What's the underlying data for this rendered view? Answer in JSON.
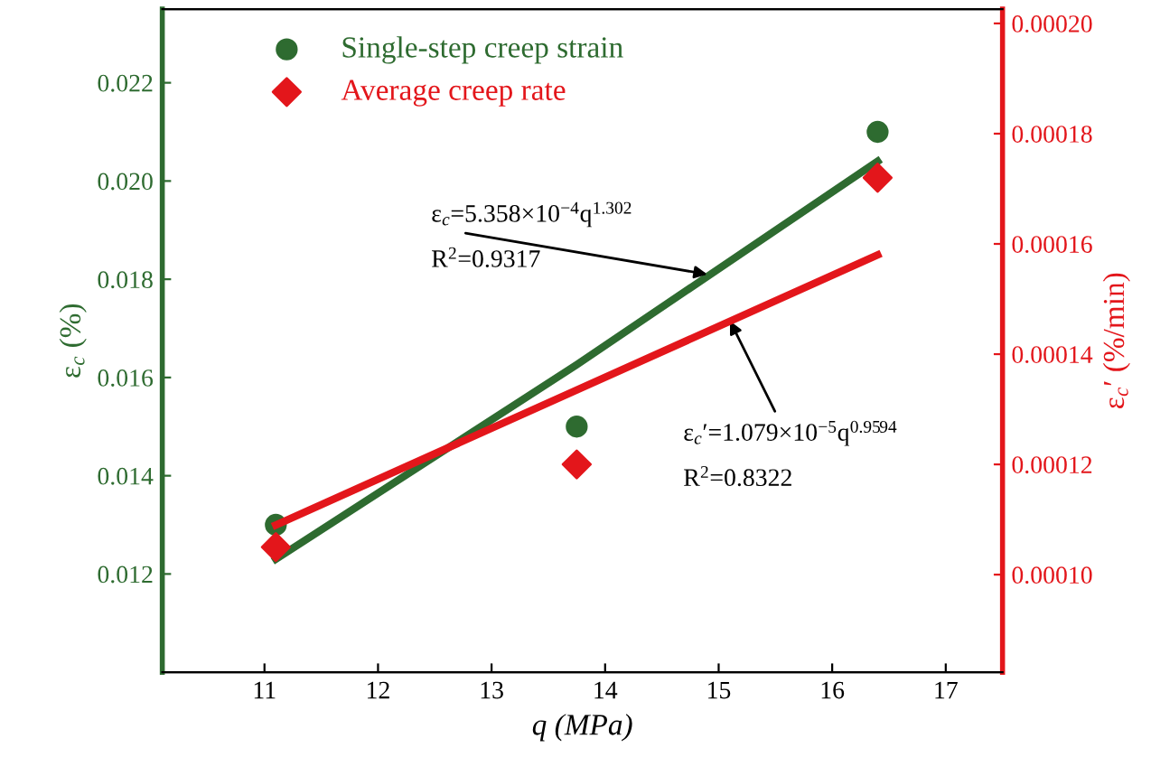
{
  "chart_data": {
    "type": "scatter",
    "xlabel": "q (MPa)",
    "ylabel": "ε$_{c}$ (%)",
    "y2label": "ε$_{c}$′ (%/min)",
    "x": [
      11.1,
      13.75,
      16.4
    ],
    "series": [
      {
        "name": "Single-step creep strain",
        "color": "#2e6b30",
        "values": [
          0.013,
          0.015,
          0.021
        ],
        "marker": "circle"
      },
      {
        "name": "Average creep rate",
        "color": "#e3161b",
        "values": [
          0.000105,
          0.00012,
          0.000172
        ],
        "marker": "diamond",
        "axis": "y2"
      },
      {
        "type": "line",
        "color": "#2e6b30",
        "values": [
          0.0123,
          0.01626,
          0.0204
        ]
      },
      {
        "type": "line",
        "color": "#e3161b",
        "values": [
          0.000109,
          0.0001335,
          0.000158
        ],
        "axis": "y2"
      }
    ],
    "annotations": [
      {
        "text": "ε$_{c}$=5.358×10$^{−4}$q$^{1.302}$",
        "x": 14.9,
        "y": 0.0181
      },
      "R$^{2}$=0.9317",
      {
        "text": "ε$_{c}$′=1.079×10$^{−5}$q$^{0.9594}$",
        "x": 15.1,
        "y": 0.01715
      },
      "R$^{2}$=0.8322"
    ],
    "xlim": [
      10.1,
      17.5
    ],
    "xticks": [
      11,
      12,
      13,
      14,
      15,
      16,
      17
    ],
    "ylim": [
      0.01,
      0.0235
    ],
    "yticks": [
      {
        "value": 0.012,
        "label": "0.012"
      },
      {
        "value": 0.014,
        "label": "0.014"
      },
      {
        "value": 0.016,
        "label": "0.016"
      },
      {
        "value": 0.018,
        "label": "0.018"
      },
      {
        "value": 0.02,
        "label": "0.020"
      },
      {
        "value": 0.022,
        "label": "0.022"
      }
    ],
    "y2lim": [
      8.23e-05,
      0.0002026
    ],
    "y2ticks": [
      {
        "value": 0.0001,
        "label": "0.00010"
      },
      {
        "value": 0.00012,
        "label": "0.00012"
      },
      {
        "value": 0.00014,
        "label": "0.00014"
      },
      {
        "value": 0.00016,
        "label": "0.00016"
      },
      {
        "value": 0.00018,
        "label": "0.00018"
      },
      {
        "value": 0.0002,
        "label": "0.00020"
      }
    ],
    "legend": "top left",
    "grid": false
  }
}
